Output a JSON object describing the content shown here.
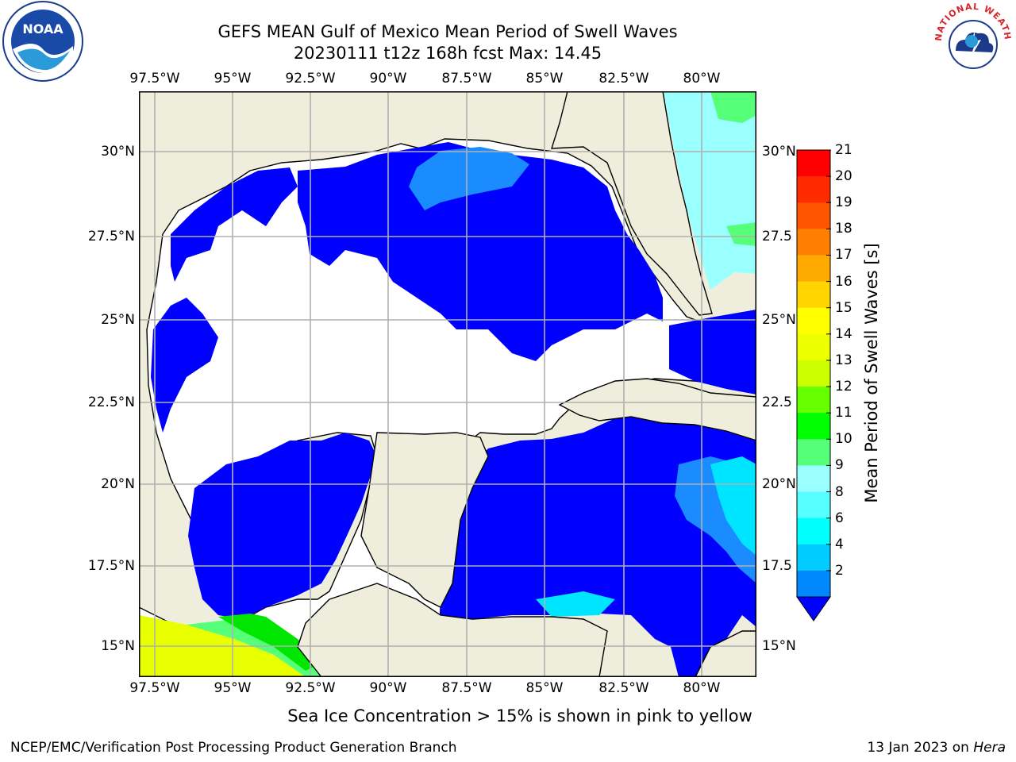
{
  "title": {
    "line1": "GEFS MEAN Gulf of Mexico Mean Period of Swell Waves",
    "line2": "20230111 t12z 168h fcst   Max: 14.45"
  },
  "longitude_labels": [
    "97.5°W",
    "95°W",
    "92.5°W",
    "90°W",
    "87.5°W",
    "85°W",
    "82.5°W",
    "80°W"
  ],
  "latitude_labels": [
    "30°N",
    "27.5°N",
    "25°N",
    "22.5°N",
    "20°N",
    "17.5°N",
    "15°N"
  ],
  "latitude_labels_right": [
    "30°N",
    "27.5",
    "25°N",
    "22.5",
    "20°N",
    "17.5",
    "15°N"
  ],
  "colorbar": {
    "title": "Mean Period of Swell Waves [s]",
    "ticks": [
      "21",
      "20",
      "19",
      "18",
      "17",
      "16",
      "15",
      "14",
      "13",
      "12",
      "11",
      "10",
      "9",
      "8",
      "6",
      "4",
      "2"
    ],
    "colors": [
      "#ff0000",
      "#ff2a00",
      "#ff5500",
      "#ff7f00",
      "#ffaa00",
      "#ffd400",
      "#ffff00",
      "#eeff00",
      "#ccff00",
      "#66ff00",
      "#00ff00",
      "#55ff77",
      "#99ffff",
      "#55ffff",
      "#00ffff",
      "#00ccff",
      "#0088ff"
    ],
    "extend_color": "#0000ff"
  },
  "map_colors": {
    "land": "#efeedc",
    "period_2_4": "#0000ff",
    "period_4_6": "#1a8cff",
    "period_6_8": "#00e5ff",
    "period_8_9": "#99ffff",
    "period_9_10": "#55ff77",
    "ice_yellow": "#e8ff00"
  },
  "footnote": "Sea Ice Concentration > 15% is shown in pink to yellow",
  "footer_left": "NCEP/EMC/Verification Post Processing Product Generation Branch",
  "footer_right_date": "13 Jan 2023 on",
  "footer_right_host": "Hera",
  "logos": {
    "noaa": "NOAA",
    "nws": "NATIONAL WEATHER SERVICE"
  }
}
